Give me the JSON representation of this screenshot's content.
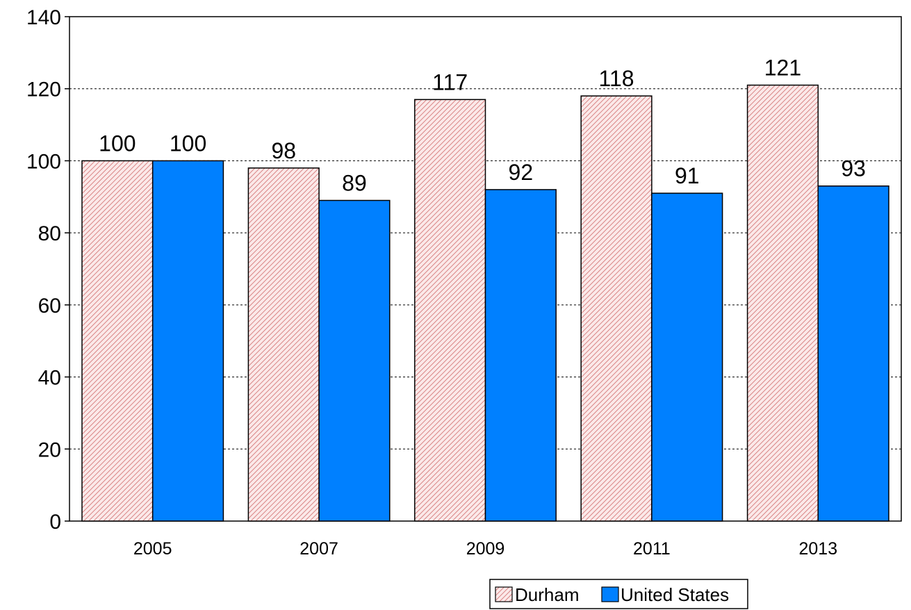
{
  "chart_data": {
    "type": "bar",
    "categories": [
      "2005",
      "2007",
      "2009",
      "2011",
      "2013"
    ],
    "series": [
      {
        "name": "Durham",
        "values": [
          100,
          98,
          117,
          118,
          121
        ],
        "color": "#f4c4c4",
        "pattern": "diagonal-hatch"
      },
      {
        "name": "United States",
        "values": [
          100,
          89,
          92,
          91,
          93
        ],
        "color": "#0080ff"
      }
    ],
    "y_ticks": [
      "0",
      "20",
      "40",
      "60",
      "80",
      "100",
      "120",
      "140"
    ],
    "ylim": [
      0,
      140
    ],
    "grid": true,
    "grid_style": "dotted-horizontal",
    "legend_position": "bottom-right"
  }
}
